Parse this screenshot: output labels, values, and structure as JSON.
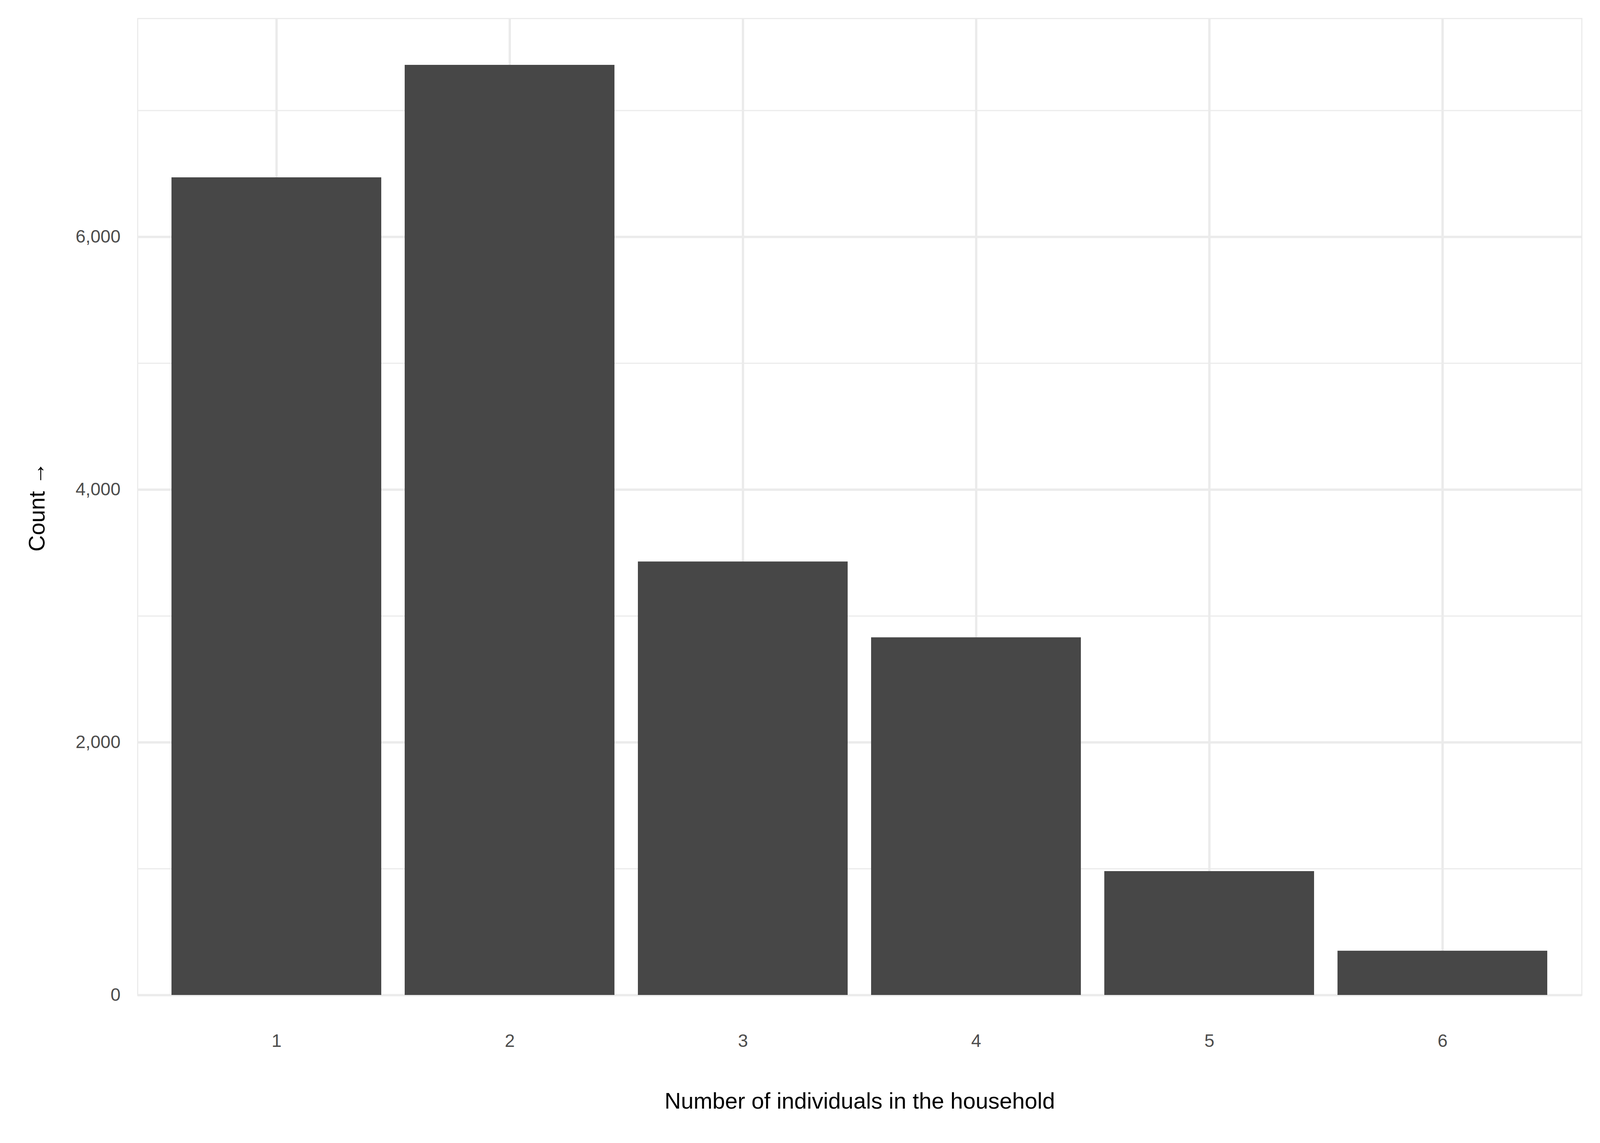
{
  "chart_data": {
    "type": "bar",
    "x_label": "Number of individuals in the household",
    "y_label": "Count",
    "categories": [
      1,
      2,
      3,
      4,
      5,
      6
    ],
    "values": [
      6470,
      7360,
      3430,
      2830,
      980,
      350
    ],
    "color": "#474747",
    "ylim": [
      0,
      7728
    ],
    "yticks": [
      0,
      2000,
      4000,
      6000
    ],
    "grid": true
  }
}
